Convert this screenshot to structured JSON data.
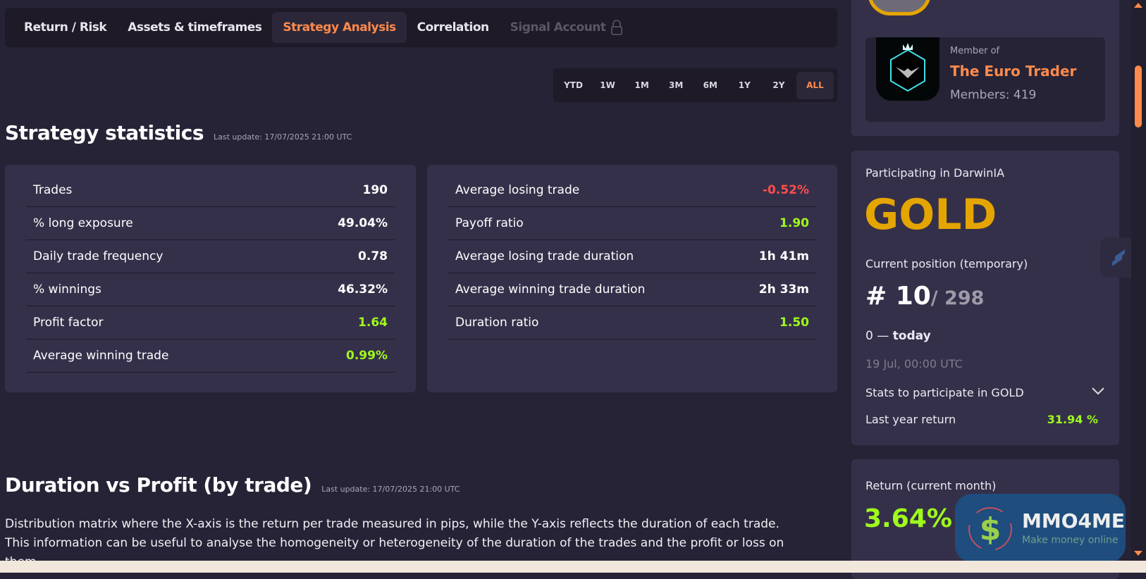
{
  "tabs": [
    {
      "label": "Return / Risk"
    },
    {
      "label": "Assets & timeframes"
    },
    {
      "label": "Strategy Analysis",
      "active": true
    },
    {
      "label": "Correlation"
    },
    {
      "label": "Signal Account",
      "locked": true
    }
  ],
  "timeframes": [
    "YTD",
    "1W",
    "1M",
    "3M",
    "6M",
    "1Y",
    "2Y",
    "ALL"
  ],
  "timeframe_selected": "ALL",
  "stats": {
    "title": "Strategy statistics",
    "last_update": "Last update: 17/07/2025 21:00 UTC",
    "left": [
      {
        "label": "Trades",
        "value": "190"
      },
      {
        "label": "% long exposure",
        "value": "49.04%"
      },
      {
        "label": "Daily trade frequency",
        "value": "0.78"
      },
      {
        "label": "% winnings",
        "value": "46.32%"
      },
      {
        "label": "Profit factor",
        "value": "1.64",
        "color": "green"
      },
      {
        "label": "Average winning trade",
        "value": "0.99%",
        "color": "green"
      }
    ],
    "right": [
      {
        "label": "Average losing trade",
        "value": "-0.52%",
        "color": "red"
      },
      {
        "label": "Payoff ratio",
        "value": "1.90",
        "color": "green"
      },
      {
        "label": "Average losing trade duration",
        "value": "1h 41m"
      },
      {
        "label": "Average winning trade duration",
        "value": "2h 33m"
      },
      {
        "label": "Duration ratio",
        "value": "1.50",
        "color": "green"
      }
    ]
  },
  "duration": {
    "title": "Duration vs Profit (by trade)",
    "last_update": "Last update: 17/07/2025 21:00 UTC",
    "description": "Distribution matrix where the X-axis is the return per trade measured in pips, while the Y-axis reflects the duration of each trade. This information can be useful to analyse the homogeneity or heterogeneity of the duration of the trades and the profit or loss on them."
  },
  "group": {
    "member_of": "Member of",
    "name": "The Euro Trader",
    "members": "Members: 419"
  },
  "darwinia": {
    "participating": "Participating in DarwinIA",
    "tier": "GOLD",
    "position_label": "Current position (temporary)",
    "position": "# 10",
    "total": "/ 298",
    "range_start": "0",
    "range_end": "today",
    "date": "19 Jul, 00:00 UTC",
    "stats_toggle": "Stats to participate in GOLD",
    "last_year_label": "Last year return",
    "last_year_value": "31.94 %"
  },
  "monthly": {
    "label": "Return (current month)",
    "value": "3.64%"
  },
  "watermark": {
    "brand": "MMO4ME",
    "tagline": "Make money online"
  },
  "colors": {
    "accent": "#ff8a4c",
    "positive": "#9efc1b",
    "negative": "#ff4d4d",
    "gold": "#e5a500"
  }
}
